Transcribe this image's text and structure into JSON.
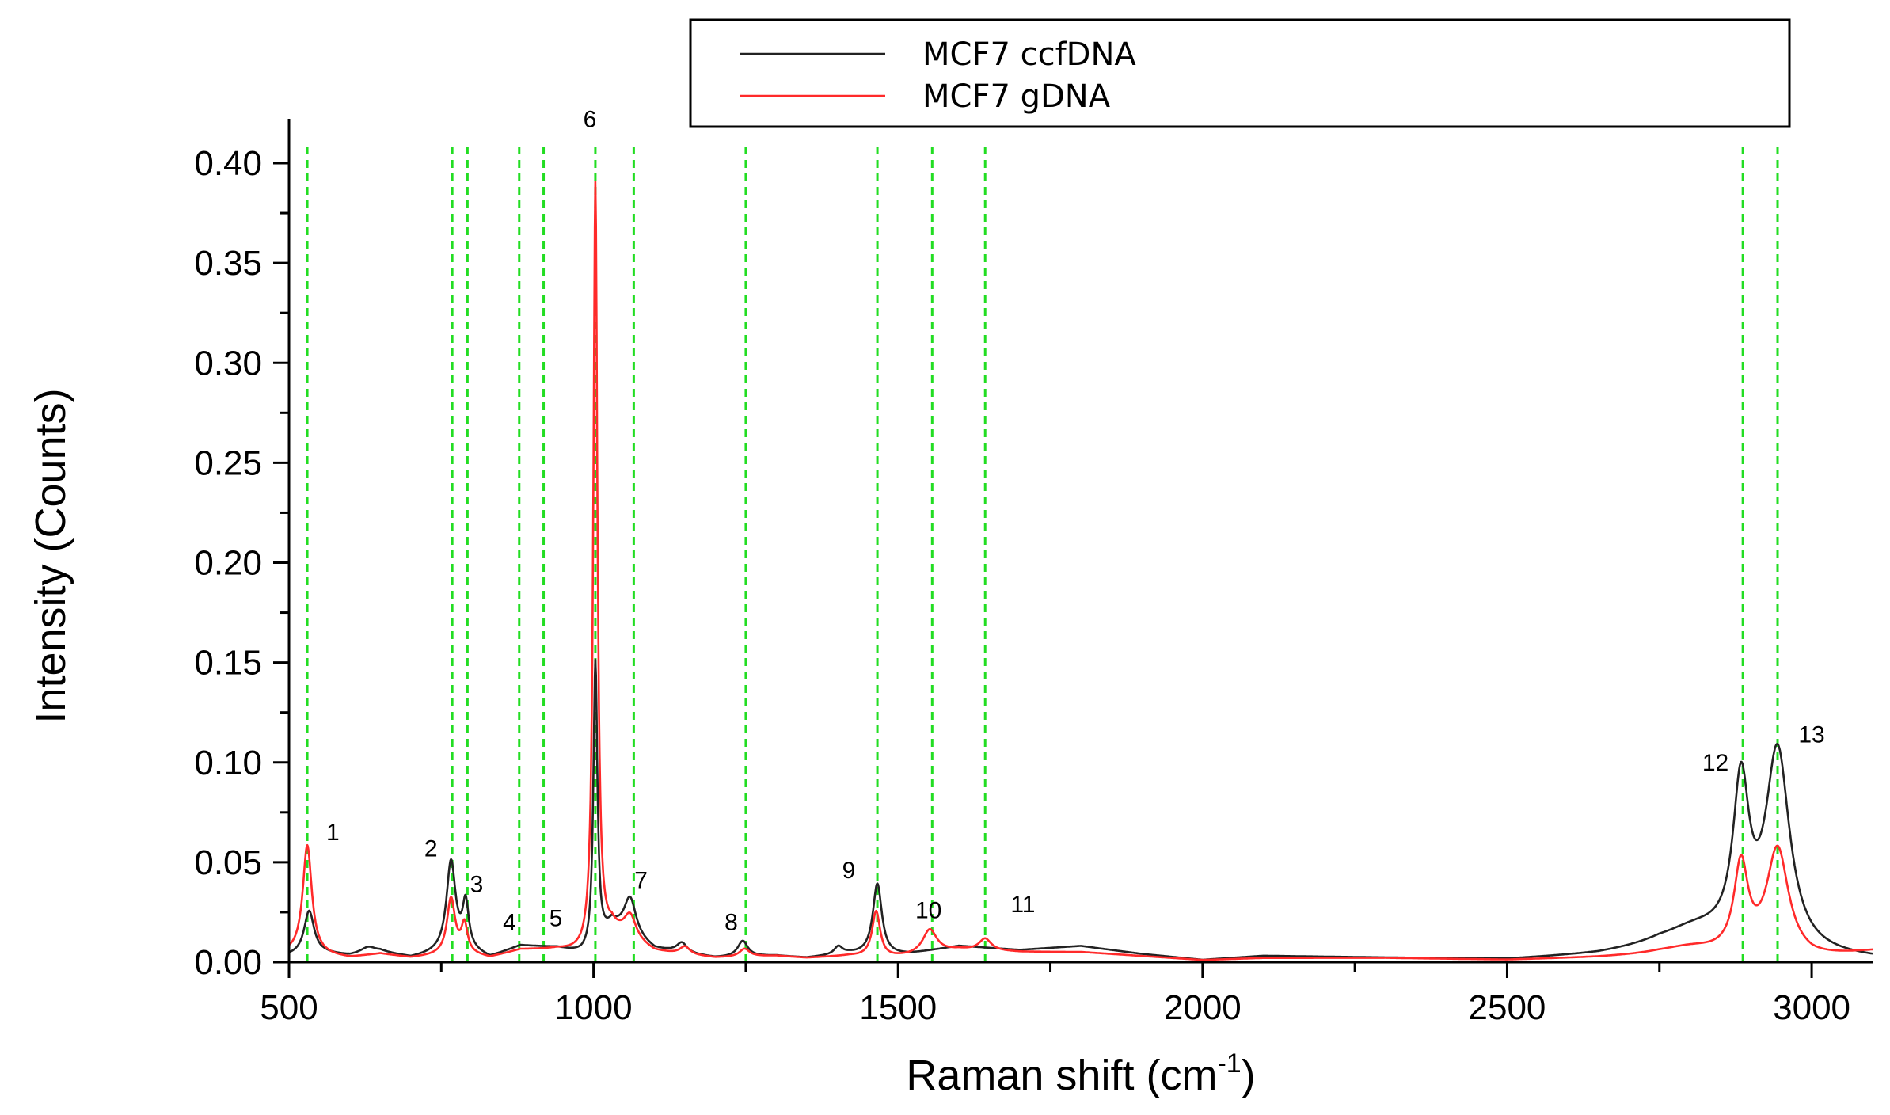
{
  "chart_data": {
    "type": "line",
    "xlabel_prefix": "Raman shift (cm",
    "xlabel_sup": "-1",
    "xlabel_suffix": ")",
    "ylabel": "Intensity (Counts)",
    "xlim": [
      500,
      3100
    ],
    "ylim": [
      0,
      0.42
    ],
    "xticks": [
      500,
      1000,
      1500,
      2000,
      2500,
      3000
    ],
    "xtick_labels": [
      "500",
      "1000",
      "1500",
      "2000",
      "2500",
      "3000"
    ],
    "yticks": [
      0.0,
      0.05,
      0.1,
      0.15,
      0.2,
      0.25,
      0.3,
      0.35,
      0.4
    ],
    "ytick_labels": [
      "0.00",
      "0.05",
      "0.10",
      "0.15",
      "0.20",
      "0.25",
      "0.30",
      "0.35",
      "0.40"
    ],
    "legend": [
      {
        "label": "MCF7 ccfDNA",
        "color": "#222222"
      },
      {
        "label": "MCF7 gDNA",
        "color": "#ff2a2a"
      }
    ],
    "reference_line_color": "#22dd22",
    "reference_lines": [
      530,
      768,
      793,
      878,
      918,
      1003,
      1066,
      1250,
      1466,
      1556,
      1643,
      2887,
      2944
    ],
    "peak_labels": [
      {
        "text": "1",
        "x": 572,
        "y": 0.061
      },
      {
        "text": "2",
        "x": 733,
        "y": 0.053
      },
      {
        "text": "3",
        "x": 808,
        "y": 0.035
      },
      {
        "text": "4",
        "x": 862,
        "y": 0.016
      },
      {
        "text": "5",
        "x": 938,
        "y": 0.018
      },
      {
        "text": "6",
        "x": 994,
        "y": 0.418
      },
      {
        "text": "7",
        "x": 1078,
        "y": 0.037
      },
      {
        "text": "8",
        "x": 1226,
        "y": 0.016
      },
      {
        "text": "9",
        "x": 1419,
        "y": 0.042
      },
      {
        "text": "10",
        "x": 1550,
        "y": 0.022
      },
      {
        "text": "11",
        "x": 1705,
        "y": 0.025
      },
      {
        "text": "12",
        "x": 2842,
        "y": 0.096
      },
      {
        "text": "13",
        "x": 3000,
        "y": 0.11
      }
    ],
    "series": [
      {
        "name": "MCF7 ccfDNA",
        "color": "#222222",
        "baseline": [
          [
            500,
            0.003
          ],
          [
            560,
            0.004
          ],
          [
            600,
            0.003
          ],
          [
            650,
            0.005
          ],
          [
            700,
            0.002
          ],
          [
            740,
            0.004
          ],
          [
            790,
            0.006
          ],
          [
            830,
            0.002
          ],
          [
            880,
            0.008
          ],
          [
            940,
            0.007
          ],
          [
            980,
            0.004
          ],
          [
            1000,
            0.004
          ],
          [
            1030,
            0.018
          ],
          [
            1100,
            0.006
          ],
          [
            1130,
            0.005
          ],
          [
            1200,
            0.002
          ],
          [
            1300,
            0.003
          ],
          [
            1350,
            0.002
          ],
          [
            1420,
            0.004
          ],
          [
            1480,
            0.003
          ],
          [
            1520,
            0.004
          ],
          [
            1600,
            0.008
          ],
          [
            1700,
            0.006
          ],
          [
            1800,
            0.008
          ],
          [
            1900,
            0.004
          ],
          [
            2000,
            0.001
          ],
          [
            2100,
            0.003
          ],
          [
            2300,
            0.002
          ],
          [
            2500,
            0.001
          ],
          [
            2650,
            0.003
          ],
          [
            2750,
            0.006
          ],
          [
            3000,
            0.002
          ],
          [
            3100,
            0.001
          ]
        ],
        "peaks": [
          [
            533,
            0.022,
            10
          ],
          [
            630,
            0.003,
            15
          ],
          [
            766,
            0.045,
            9
          ],
          [
            790,
            0.022,
            6
          ],
          [
            1003,
            0.145,
            4
          ],
          [
            1060,
            0.019,
            12
          ],
          [
            1145,
            0.005,
            10
          ],
          [
            1245,
            0.008,
            10
          ],
          [
            1402,
            0.004,
            8
          ],
          [
            1466,
            0.036,
            9
          ],
          [
            2884,
            0.078,
            16
          ],
          [
            2944,
            0.099,
            24
          ],
          [
            2810,
            0.01,
            70
          ]
        ]
      },
      {
        "name": "MCF7 gDNA",
        "color": "#ff2a2a",
        "baseline": [
          [
            500,
            0.004
          ],
          [
            560,
            0.003
          ],
          [
            600,
            0.002
          ],
          [
            650,
            0.004
          ],
          [
            700,
            0.002
          ],
          [
            740,
            0.003
          ],
          [
            790,
            0.004
          ],
          [
            830,
            0.002
          ],
          [
            880,
            0.006
          ],
          [
            940,
            0.006
          ],
          [
            980,
            0.004
          ],
          [
            1000,
            0.004
          ],
          [
            1030,
            0.015
          ],
          [
            1100,
            0.005
          ],
          [
            1130,
            0.004
          ],
          [
            1200,
            0.002
          ],
          [
            1300,
            0.003
          ],
          [
            1350,
            0.002
          ],
          [
            1420,
            0.003
          ],
          [
            1480,
            0.002
          ],
          [
            1520,
            0.003
          ],
          [
            1600,
            0.006
          ],
          [
            1700,
            0.005
          ],
          [
            1800,
            0.005
          ],
          [
            1900,
            0.003
          ],
          [
            2000,
            0.001
          ],
          [
            2100,
            0.002
          ],
          [
            2300,
            0.002
          ],
          [
            2500,
            0.001
          ],
          [
            2650,
            0.002
          ],
          [
            2750,
            0.003
          ],
          [
            3000,
            0.001
          ],
          [
            3100,
            0.005
          ]
        ],
        "peaks": [
          [
            530,
            0.055,
            9
          ],
          [
            766,
            0.028,
            8
          ],
          [
            788,
            0.014,
            6
          ],
          [
            1003,
            0.385,
            4
          ],
          [
            1060,
            0.012,
            12
          ],
          [
            1150,
            0.004,
            10
          ],
          [
            1248,
            0.004,
            10
          ],
          [
            1464,
            0.023,
            8
          ],
          [
            1552,
            0.012,
            14
          ],
          [
            1643,
            0.006,
            12
          ],
          [
            2884,
            0.044,
            14
          ],
          [
            2944,
            0.054,
            22
          ],
          [
            2800,
            0.004,
            60
          ]
        ]
      }
    ]
  }
}
